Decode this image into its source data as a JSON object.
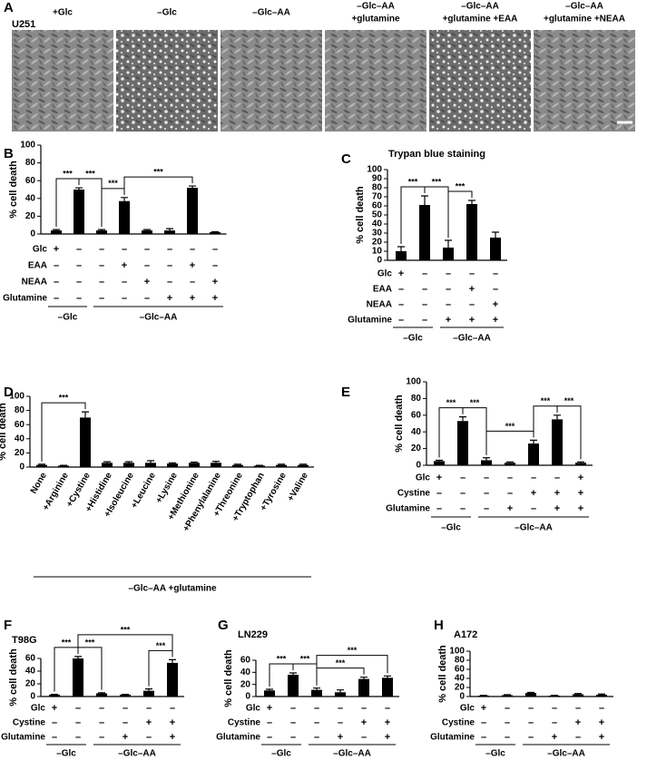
{
  "panel_a": {
    "panel": "A",
    "cell_line": "U251",
    "images": [
      {
        "label": [
          "+Glc"
        ]
      },
      {
        "label": [
          "–Glc"
        ]
      },
      {
        "label": [
          "–Glc–AA"
        ]
      },
      {
        "label": [
          "–Glc–AA",
          "+glutamine"
        ]
      },
      {
        "label": [
          "–Glc–AA",
          "+glutamine +EAA"
        ]
      },
      {
        "label": [
          "–Glc–AA",
          "+glutamine +NEAA"
        ]
      }
    ]
  },
  "chart_data": [
    {
      "type": "bar",
      "panel": "B",
      "y_label": "% cell death",
      "ylim": [
        0,
        100
      ],
      "yticks": [
        0,
        20,
        40,
        60,
        80,
        100
      ],
      "color": "#000000",
      "values": [
        4,
        50,
        4,
        37,
        4,
        4,
        52,
        2
      ],
      "errors": [
        1,
        2,
        1,
        4,
        1,
        2,
        2,
        0.5
      ],
      "conditions": [
        {
          "name": "Glc",
          "marks": [
            "+",
            "–",
            "–",
            "–",
            "–",
            "–",
            "–",
            "–"
          ]
        },
        {
          "name": "EAA",
          "marks": [
            "–",
            "–",
            "–",
            "+",
            "–",
            "–",
            "+",
            "–"
          ]
        },
        {
          "name": "NEAA",
          "marks": [
            "–",
            "–",
            "–",
            "–",
            "+",
            "–",
            "–",
            "+"
          ]
        },
        {
          "name": "Glutamine",
          "marks": [
            "–",
            "–",
            "–",
            "–",
            "–",
            "+",
            "+",
            "+"
          ]
        }
      ],
      "groups": [
        {
          "label": "–Glc",
          "bars": [
            0,
            1
          ]
        },
        {
          "label": "–Glc–AA",
          "bars": [
            2,
            7
          ]
        }
      ],
      "significance": [
        {
          "label": "***",
          "bars": [
            0,
            1
          ]
        },
        {
          "label": "***",
          "bars": [
            1,
            2
          ]
        },
        {
          "label": "***",
          "bars": [
            2,
            3
          ]
        },
        {
          "label": "***",
          "bars": [
            3,
            6
          ]
        }
      ]
    },
    {
      "type": "bar",
      "panel": "C",
      "title": "Trypan blue staining",
      "y_label": "% cell death",
      "ylim": [
        0,
        100
      ],
      "yticks": [
        0,
        10,
        20,
        30,
        40,
        50,
        60,
        70,
        80,
        90,
        100
      ],
      "color": "#000000",
      "values": [
        10,
        61,
        14,
        62,
        25
      ],
      "errors": [
        5,
        10,
        8,
        4,
        6
      ],
      "conditions": [
        {
          "name": "Glc",
          "marks": [
            "+",
            "–",
            "–",
            "–",
            "–"
          ]
        },
        {
          "name": "EAA",
          "marks": [
            "–",
            "–",
            "–",
            "+",
            "–"
          ]
        },
        {
          "name": "NEAA",
          "marks": [
            "–",
            "–",
            "–",
            "–",
            "+"
          ]
        },
        {
          "name": "Glutamine",
          "marks": [
            "–",
            "–",
            "+",
            "+",
            "+"
          ]
        }
      ],
      "groups": [
        {
          "label": "–Glc",
          "bars": [
            0,
            1
          ]
        },
        {
          "label": "–Glc–AA",
          "bars": [
            2,
            4
          ]
        }
      ],
      "significance": [
        {
          "label": "***",
          "bars": [
            0,
            1
          ]
        },
        {
          "label": "***",
          "bars": [
            1,
            2
          ]
        },
        {
          "label": "***",
          "bars": [
            2,
            3
          ]
        }
      ]
    },
    {
      "type": "bar",
      "panel": "D",
      "y_label": "% cell death",
      "ylim": [
        0,
        100
      ],
      "yticks": [
        0,
        20,
        40,
        60,
        80,
        100
      ],
      "color": "#000000",
      "categories": [
        "None",
        "+Arginine",
        "+Cystine",
        "+Histidine",
        "+Isoleucine",
        "+Leucine",
        "+Lysine",
        "+Methionine",
        "+Phenylalanine",
        "+Threonine",
        "+Tryptophan",
        "+Tyrosine",
        "+Valine"
      ],
      "values": [
        3,
        2,
        70,
        6,
        6,
        6,
        5,
        6,
        6,
        3,
        2,
        3,
        3
      ],
      "errors": [
        1,
        0.5,
        8,
        1.5,
        1.5,
        3,
        1,
        1,
        2,
        1,
        0.5,
        1,
        1
      ],
      "groups": [
        {
          "label": "–Glc–AA +glutamine",
          "bars": [
            0,
            12
          ]
        }
      ],
      "significance": [
        {
          "label": "***",
          "bars": [
            0,
            2
          ]
        }
      ]
    },
    {
      "type": "bar",
      "panel": "E",
      "y_label": "% cell death",
      "ylim": [
        0,
        100
      ],
      "yticks": [
        0,
        20,
        40,
        60,
        80,
        100
      ],
      "color": "#000000",
      "values": [
        5,
        53,
        6,
        3,
        26,
        55,
        3
      ],
      "errors": [
        1,
        5,
        3,
        1,
        4,
        5,
        1
      ],
      "conditions": [
        {
          "name": "Glc",
          "marks": [
            "+",
            "–",
            "–",
            "–",
            "–",
            "–",
            "+"
          ]
        },
        {
          "name": "Cystine",
          "marks": [
            "–",
            "–",
            "–",
            "–",
            "+",
            "+",
            "+"
          ]
        },
        {
          "name": "Glutamine",
          "marks": [
            "–",
            "–",
            "–",
            "+",
            "–",
            "+",
            "+"
          ]
        }
      ],
      "groups": [
        {
          "label": "–Glc",
          "bars": [
            0,
            1
          ]
        },
        {
          "label": "–Glc–AA",
          "bars": [
            2,
            6
          ]
        }
      ],
      "significance": [
        {
          "label": "***",
          "bars": [
            0,
            1
          ]
        },
        {
          "label": "***",
          "bars": [
            1,
            2
          ]
        },
        {
          "label": "***",
          "bars": [
            2,
            4
          ]
        },
        {
          "label": "***",
          "bars": [
            4,
            5
          ]
        },
        {
          "label": "***",
          "bars": [
            5,
            6
          ]
        }
      ]
    },
    {
      "type": "bar",
      "panel": "F",
      "cell_line": "T98G",
      "y_label": "% cell death",
      "ylim": [
        0,
        60
      ],
      "yticks": [
        0,
        20,
        40,
        60
      ],
      "color": "#000000",
      "values": [
        3,
        60,
        5,
        3,
        9,
        53
      ],
      "errors": [
        0.5,
        3,
        1,
        0.5,
        3,
        5
      ],
      "conditions": [
        {
          "name": "Glc",
          "marks": [
            "+",
            "–",
            "–",
            "–",
            "–",
            "–"
          ]
        },
        {
          "name": "Cystine",
          "marks": [
            "–",
            "–",
            "–",
            "–",
            "+",
            "+"
          ]
        },
        {
          "name": "Glutamine",
          "marks": [
            "–",
            "–",
            "–",
            "+",
            "–",
            "+"
          ]
        }
      ],
      "groups": [
        {
          "label": "–Glc",
          "bars": [
            0,
            1
          ]
        },
        {
          "label": "–Glc–AA",
          "bars": [
            2,
            5
          ]
        }
      ],
      "significance": [
        {
          "label": "***",
          "bars": [
            0,
            1
          ]
        },
        {
          "label": "***",
          "bars": [
            1,
            2
          ]
        },
        {
          "label": "***",
          "bars": [
            4,
            5
          ]
        },
        {
          "label": "***",
          "bars": [
            1,
            5
          ]
        }
      ]
    },
    {
      "type": "bar",
      "panel": "G",
      "cell_line": "LN229",
      "y_label": "% cell death",
      "ylim": [
        0,
        60
      ],
      "yticks": [
        0,
        20,
        40,
        60
      ],
      "color": "#000000",
      "values": [
        10,
        36,
        11,
        7,
        29,
        31
      ],
      "errors": [
        2,
        3,
        3,
        4,
        3,
        3
      ],
      "conditions": [
        {
          "name": "Glc",
          "marks": [
            "+",
            "–",
            "–",
            "–",
            "–",
            "–"
          ]
        },
        {
          "name": "Cystine",
          "marks": [
            "–",
            "–",
            "–",
            "–",
            "+",
            "+"
          ]
        },
        {
          "name": "Glutamine",
          "marks": [
            "–",
            "–",
            "–",
            "+",
            "–",
            "+"
          ]
        }
      ],
      "groups": [
        {
          "label": "–Glc",
          "bars": [
            0,
            1
          ]
        },
        {
          "label": "–Glc–AA",
          "bars": [
            2,
            5
          ]
        }
      ],
      "significance": [
        {
          "label": "***",
          "bars": [
            0,
            1
          ]
        },
        {
          "label": "***",
          "bars": [
            1,
            2
          ]
        },
        {
          "label": "***",
          "bars": [
            2,
            4
          ]
        },
        {
          "label": "***",
          "bars": [
            2,
            5
          ]
        }
      ]
    },
    {
      "type": "bar",
      "panel": "H",
      "cell_line": "A172",
      "y_label": "% cell death",
      "ylim": [
        0,
        100
      ],
      "yticks": [
        0,
        20,
        40,
        60,
        80,
        100
      ],
      "color": "#000000",
      "values": [
        2,
        3,
        8,
        2,
        5,
        4
      ],
      "errors": [
        0.5,
        1,
        1,
        0.5,
        1.5,
        1.5
      ],
      "conditions": [
        {
          "name": "Glc",
          "marks": [
            "+",
            "–",
            "–",
            "–",
            "–",
            "–"
          ]
        },
        {
          "name": "Cystine",
          "marks": [
            "–",
            "–",
            "–",
            "–",
            "+",
            "+"
          ]
        },
        {
          "name": "Glutamine",
          "marks": [
            "–",
            "–",
            "–",
            "+",
            "–",
            "+"
          ]
        }
      ],
      "groups": [
        {
          "label": "–Glc",
          "bars": [
            0,
            1
          ]
        },
        {
          "label": "–Glc–AA",
          "bars": [
            2,
            5
          ]
        }
      ],
      "significance": []
    }
  ]
}
